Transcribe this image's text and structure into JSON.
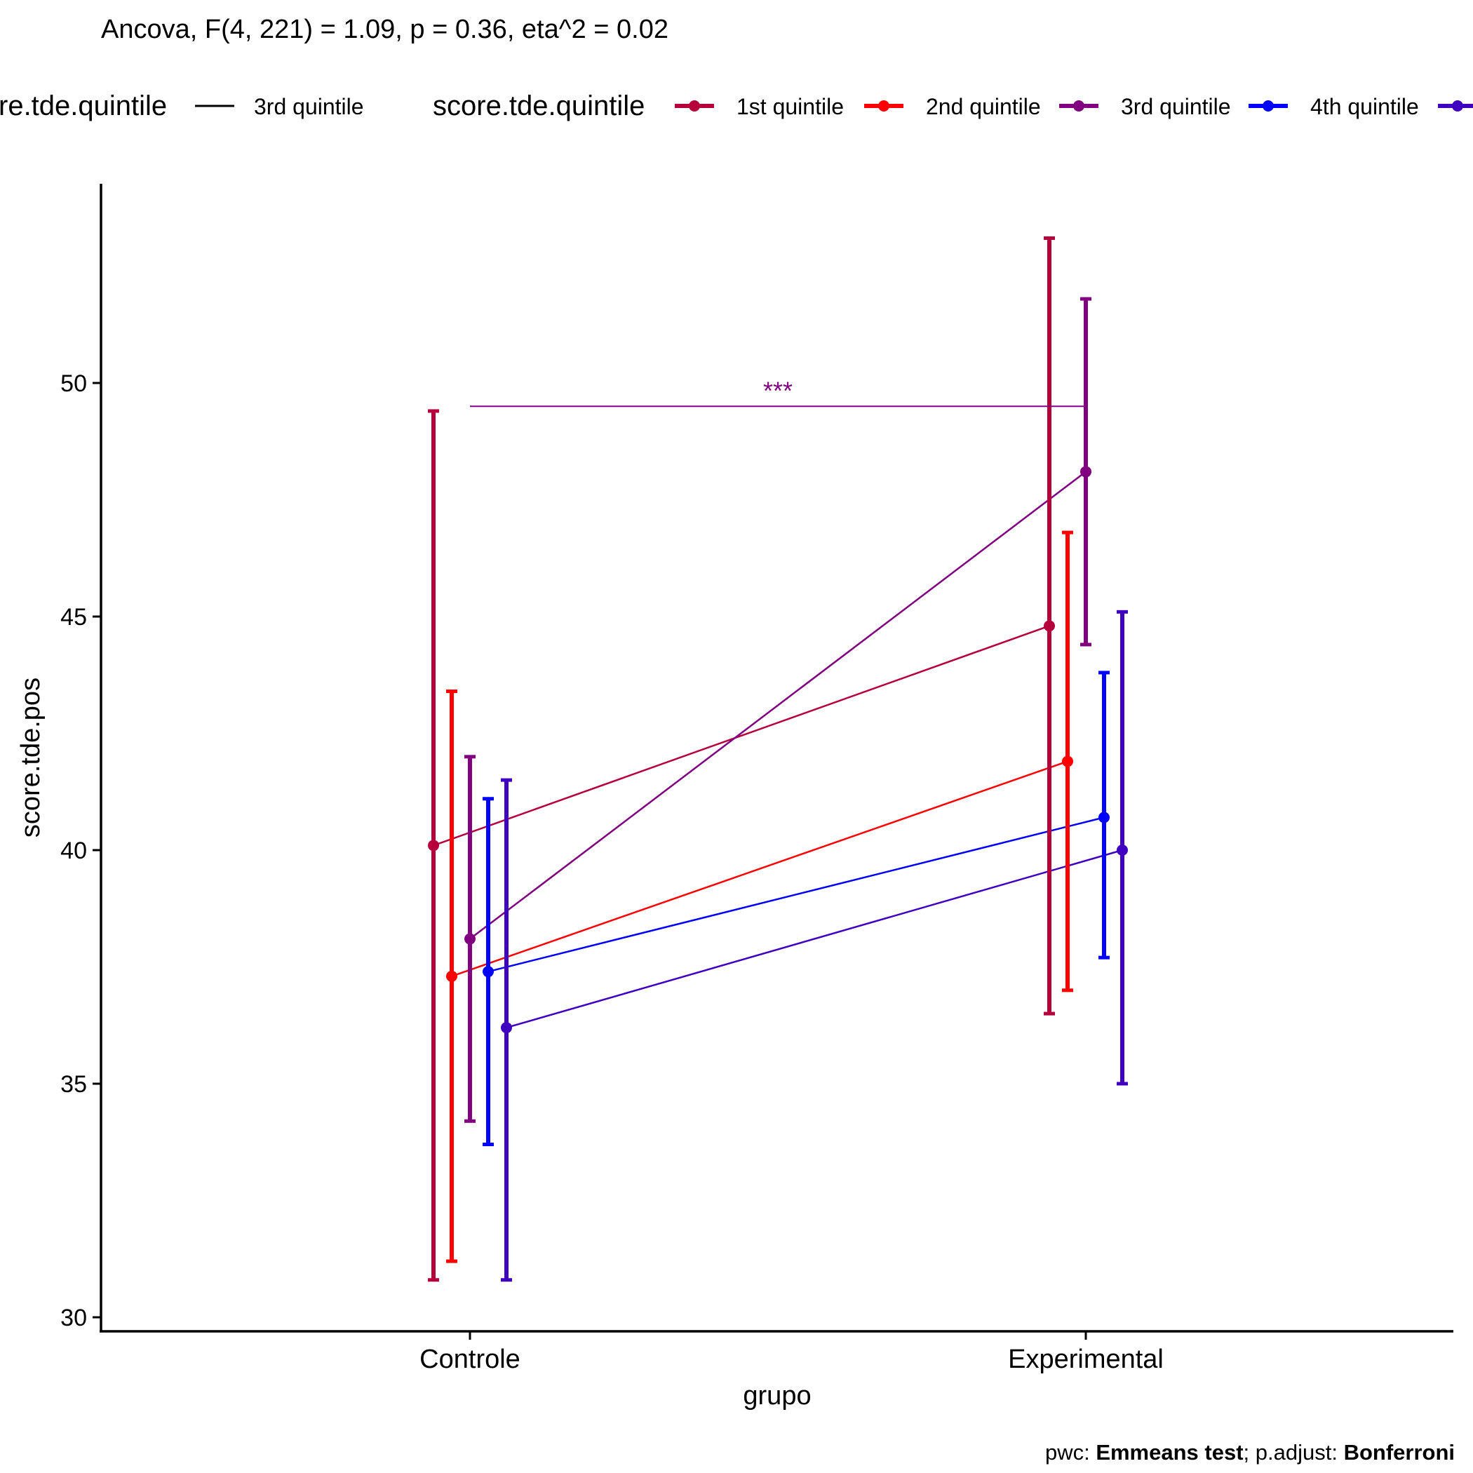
{
  "chart_data": {
    "type": "line",
    "title": "Ancova, F(4, 221) = 1.09, p = 0.36, eta^2 = 0.02",
    "xlabel": "grupo",
    "ylabel": "score.tde.pos",
    "categories": [
      "Controle",
      "Experimental"
    ],
    "ylim": [
      29.7,
      54.3
    ],
    "yticks": [
      30,
      35,
      40,
      45,
      50
    ],
    "grid": false,
    "legend_position": "top",
    "legend_left": {
      "title": "re.tde.quintile",
      "entries": [
        "3rd quintile"
      ],
      "color": "#000000"
    },
    "legend_right": {
      "title": "score.tde.quintile",
      "entries": [
        "1st quintile",
        "2nd quintile",
        "3rd quintile",
        "4th quintile",
        ""
      ]
    },
    "series": [
      {
        "name": "1st quintile",
        "color": "#b5003c",
        "values": [
          40.1,
          44.8
        ],
        "lower": [
          30.8,
          36.5
        ],
        "upper": [
          49.4,
          53.1
        ]
      },
      {
        "name": "2nd quintile",
        "color": "#ff0000",
        "values": [
          37.3,
          41.9
        ],
        "lower": [
          31.2,
          37.0
        ],
        "upper": [
          43.4,
          46.8
        ]
      },
      {
        "name": "3rd quintile",
        "color": "#800080",
        "values": [
          38.1,
          48.1
        ],
        "lower": [
          34.2,
          44.4
        ],
        "upper": [
          42.0,
          51.8
        ]
      },
      {
        "name": "4th quintile",
        "color": "#0000ff",
        "values": [
          37.4,
          40.7
        ],
        "lower": [
          33.7,
          37.7
        ],
        "upper": [
          41.1,
          43.8
        ]
      },
      {
        "name": "",
        "color": "#4000c0",
        "values": [
          36.2,
          40.0
        ],
        "lower": [
          30.8,
          35.0
        ],
        "upper": [
          41.5,
          45.1
        ]
      }
    ],
    "annotation": {
      "label": "***",
      "from": "Controle",
      "to": "Experimental",
      "y": 49.5,
      "color": "#800080"
    },
    "caption": {
      "prefix": "pwc: ",
      "test": "Emmeans test",
      "mid": "; p.adjust: ",
      "method": "Bonferroni"
    }
  }
}
